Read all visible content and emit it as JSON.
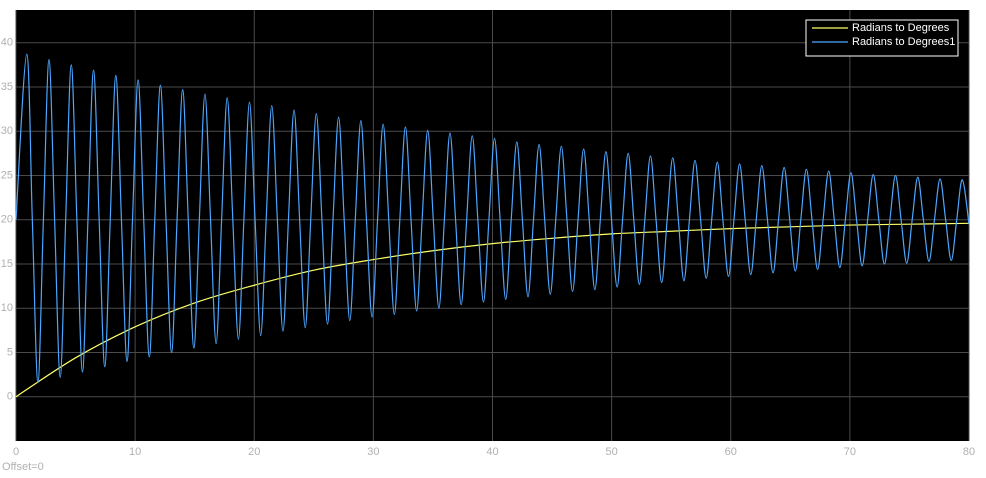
{
  "chart_data": {
    "type": "line",
    "annotation": "Offset=0",
    "xlim": [
      0,
      80
    ],
    "xticks": [
      0,
      10,
      20,
      30,
      40,
      50,
      60,
      70,
      80
    ],
    "ylim": [
      -5,
      43.7
    ],
    "yticks": [
      0,
      5,
      10,
      15,
      20,
      25,
      30,
      35,
      40
    ],
    "grid": true,
    "legend": "top-right",
    "series": [
      {
        "name": "Radians to Degrees",
        "color": "#ffff66",
        "x": [
          0,
          5,
          10,
          15,
          20,
          25,
          30,
          35,
          40,
          45,
          50,
          55,
          60,
          65,
          70,
          75,
          80
        ],
        "values": [
          0,
          4.4,
          7.9,
          10.6,
          12.6,
          14.3,
          15.5,
          16.5,
          17.3,
          17.9,
          18.4,
          18.7,
          19.0,
          19.2,
          19.4,
          19.5,
          19.6
        ]
      },
      {
        "name": "Radians to Degrees1",
        "color": "#4da6ff",
        "x": [
          0,
          0.9,
          1.37,
          1.84,
          2.3,
          2.77,
          3.24,
          3.71,
          4.17,
          4.64,
          5.11,
          5.58,
          6.04,
          6.51,
          6.98,
          7.45,
          7.91,
          8.38,
          8.85,
          9.32,
          9.78,
          10.25,
          10.72,
          11.19,
          11.65,
          12.12,
          12.59,
          13.06,
          13.52,
          13.99,
          14.46,
          14.93,
          15.39,
          15.86,
          16.33,
          16.8,
          17.26,
          17.73,
          18.2,
          18.67,
          19.13,
          19.6,
          20.07,
          20.54,
          21,
          21.47,
          21.94,
          22.41,
          22.87,
          23.34,
          23.81,
          24.28,
          24.74,
          25.21,
          25.68,
          26.15,
          26.61,
          27.08,
          27.55,
          28.02,
          28.48,
          28.95,
          29.42,
          29.89,
          30.35,
          30.82,
          31.29,
          31.76,
          32.22,
          32.69,
          33.16,
          33.63,
          34.09,
          34.56,
          35.03,
          35.5,
          35.96,
          36.43,
          36.9,
          37.37,
          37.83,
          38.3,
          38.77,
          39.24,
          39.7,
          40.17,
          40.64,
          41.11,
          41.57,
          42.04,
          42.51,
          42.98,
          43.44,
          43.91,
          44.38,
          44.85,
          45.31,
          45.78,
          46.25,
          46.72,
          47.18,
          47.65,
          48.12,
          48.59,
          49.05,
          49.52,
          49.99,
          50.46,
          50.92,
          51.39,
          51.86,
          52.33,
          52.79,
          53.26,
          53.73,
          54.2,
          54.66,
          55.13,
          55.6,
          56.07,
          56.53,
          57,
          57.47,
          57.94,
          58.4,
          58.87,
          59.34,
          59.81,
          60.27,
          60.74,
          61.21,
          61.68,
          62.14,
          62.61,
          63.08,
          63.55,
          64.01,
          64.48,
          64.95,
          65.42,
          65.88,
          66.35,
          66.82,
          67.29,
          67.75,
          68.22,
          68.69,
          69.16,
          69.62,
          70.09,
          70.56,
          71.03,
          71.49,
          71.96,
          72.43,
          72.9,
          73.36,
          73.83,
          74.3,
          74.77,
          75.23,
          75.7,
          76.17,
          76.64,
          77.1,
          77.57,
          78.04,
          78.51,
          78.97,
          79.44,
          80
        ],
        "values": [
          20,
          38.7,
          20,
          1.6,
          20,
          38.1,
          20,
          2.2,
          20,
          37.5,
          20,
          2.8,
          20,
          36.9,
          20,
          3.4,
          20,
          36.3,
          20,
          4.0,
          20,
          35.8,
          20,
          4.5,
          20,
          35.2,
          20,
          5.0,
          20,
          34.7,
          20,
          5.5,
          20,
          34.2,
          20,
          6.0,
          20,
          33.8,
          20,
          6.5,
          20,
          33.3,
          20,
          6.9,
          20,
          32.9,
          20,
          7.4,
          20,
          32.4,
          20,
          7.8,
          20,
          32.0,
          20,
          8.2,
          20,
          31.6,
          20,
          8.6,
          20,
          31.2,
          20,
          9.0,
          20,
          30.8,
          20,
          9.3,
          20,
          30.5,
          20,
          9.7,
          20,
          30.1,
          20,
          10.0,
          20,
          29.8,
          20,
          10.4,
          20,
          29.5,
          20,
          10.7,
          20,
          29.2,
          20,
          11.0,
          20,
          28.8,
          20,
          11.3,
          20,
          28.5,
          20,
          11.6,
          20,
          28.3,
          20,
          11.9,
          20,
          28.0,
          20,
          12.1,
          20,
          27.7,
          20,
          12.4,
          20,
          27.5,
          20,
          12.7,
          20,
          27.2,
          20,
          12.9,
          20,
          27.0,
          20,
          13.1,
          20,
          26.7,
          20,
          13.4,
          20,
          26.5,
          20,
          13.6,
          20,
          26.3,
          20,
          13.8,
          20,
          26.1,
          20,
          14.0,
          20,
          25.9,
          20,
          14.2,
          20,
          25.7,
          20,
          14.4,
          20,
          25.5,
          20,
          14.6,
          20,
          25.3,
          20,
          14.8,
          20,
          25.1,
          20,
          15.0,
          20,
          25.0,
          20,
          15.1,
          20,
          24.8,
          20,
          15.3,
          20,
          24.6,
          20,
          15.4,
          20,
          24.5,
          19.5
        ]
      }
    ]
  }
}
